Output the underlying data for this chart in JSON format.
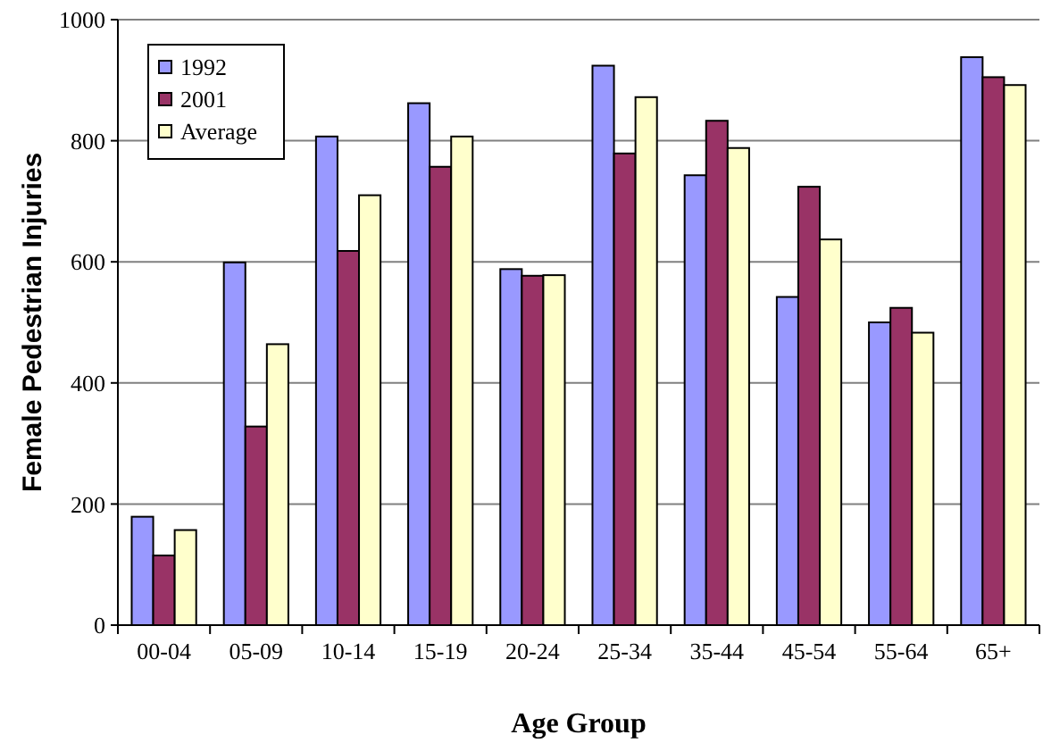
{
  "chart_data": {
    "type": "bar",
    "xlabel": "Age Group",
    "ylabel": "Female Pedestrian Injuries",
    "categories": [
      "00-04",
      "05-09",
      "10-14",
      "15-19",
      "20-24",
      "25-34",
      "35-44",
      "45-54",
      "55-64",
      "65+"
    ],
    "series": [
      {
        "name": "1992",
        "color": "#9999ff",
        "values": [
          179,
          599,
          807,
          862,
          588,
          924,
          743,
          542,
          500,
          938
        ]
      },
      {
        "name": "2001",
        "color": "#993366",
        "values": [
          115,
          328,
          618,
          757,
          577,
          779,
          833,
          724,
          524,
          905
        ]
      },
      {
        "name": "Average",
        "color": "#ffffcc",
        "values": [
          157,
          464,
          710,
          807,
          578,
          872,
          788,
          637,
          483,
          892
        ]
      }
    ],
    "ylim": [
      0,
      1000
    ],
    "yticks": [
      0,
      200,
      400,
      600,
      800,
      1000
    ],
    "grid": "y",
    "legend": "top left"
  }
}
